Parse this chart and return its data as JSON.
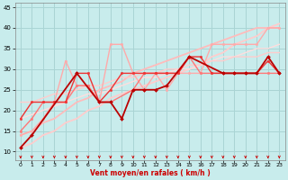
{
  "xlabel": "Vent moyen/en rafales ( km/h )",
  "xlim": [
    -0.5,
    23.5
  ],
  "ylim": [
    8,
    46
  ],
  "yticks": [
    10,
    15,
    20,
    25,
    30,
    35,
    40,
    45
  ],
  "xticks": [
    0,
    1,
    2,
    3,
    4,
    5,
    6,
    7,
    8,
    9,
    10,
    11,
    12,
    13,
    14,
    15,
    16,
    17,
    18,
    19,
    20,
    21,
    22,
    23
  ],
  "background_color": "#c8ecec",
  "grid_color": "#aad4d4",
  "arrow_color": "#cc0000",
  "series": [
    {
      "x": [
        0,
        1,
        5,
        7,
        8,
        9,
        10,
        11,
        12,
        13,
        15,
        18,
        19,
        20,
        21,
        22,
        23
      ],
      "y": [
        11,
        14,
        29,
        22,
        22,
        18,
        25,
        25,
        25,
        26,
        33,
        29,
        29,
        29,
        29,
        33,
        29
      ],
      "color": "#bb0000",
      "lw": 1.3,
      "marker": "D",
      "ms": 2.0,
      "alpha": 1.0,
      "zorder": 5
    },
    {
      "x": [
        0,
        1,
        2,
        3,
        4,
        5,
        6,
        7,
        8,
        10,
        11,
        12,
        13,
        14,
        15,
        16,
        17,
        18,
        19,
        20,
        21,
        22,
        23
      ],
      "y": [
        15,
        18,
        22,
        22,
        22,
        26,
        26,
        22,
        22,
        25,
        29,
        29,
        29,
        29,
        33,
        29,
        29,
        29,
        29,
        29,
        29,
        29,
        29
      ],
      "color": "#ff7777",
      "lw": 1.0,
      "marker": "o",
      "ms": 1.8,
      "alpha": 1.0,
      "zorder": 4
    },
    {
      "x": [
        0,
        1,
        2,
        3,
        4,
        5,
        6,
        7,
        8,
        9,
        10,
        11,
        12,
        13,
        14,
        15,
        16,
        17,
        18,
        19,
        20,
        21,
        22,
        23
      ],
      "y": [
        14,
        15,
        18,
        22,
        32,
        26,
        26,
        22,
        36,
        36,
        29,
        25,
        29,
        25,
        29,
        29,
        29,
        36,
        36,
        36,
        36,
        36,
        40,
        40
      ],
      "color": "#ffaaaa",
      "lw": 1.0,
      "marker": "o",
      "ms": 1.8,
      "alpha": 1.0,
      "zorder": 3
    },
    {
      "x": [
        0,
        1,
        2,
        3,
        4,
        5,
        6,
        7,
        8,
        9,
        10,
        11,
        12,
        13,
        14,
        15,
        16,
        17,
        18,
        19,
        20,
        21,
        22,
        23
      ],
      "y": [
        18,
        22,
        22,
        22,
        22,
        29,
        29,
        22,
        25,
        29,
        29,
        29,
        29,
        29,
        29,
        33,
        33,
        29,
        29,
        29,
        29,
        29,
        32,
        29
      ],
      "color": "#ee3333",
      "lw": 1.0,
      "marker": "o",
      "ms": 1.8,
      "alpha": 1.0,
      "zorder": 4
    },
    {
      "x": [
        0,
        1,
        2,
        3,
        4,
        5,
        6,
        7,
        8,
        9,
        10,
        11,
        12,
        13,
        14,
        15,
        16,
        17,
        18,
        19,
        20,
        21,
        22,
        23
      ],
      "y": [
        11,
        12,
        14,
        15,
        17,
        18,
        20,
        21,
        23,
        24,
        25,
        26,
        27,
        28,
        29,
        30,
        31,
        33,
        34,
        36,
        37,
        38,
        40,
        41
      ],
      "color": "#ffcccc",
      "lw": 1.3,
      "marker": null,
      "ms": 0,
      "alpha": 1.0,
      "zorder": 2
    },
    {
      "x": [
        0,
        1,
        2,
        3,
        4,
        5,
        6,
        7,
        8,
        9,
        10,
        11,
        12,
        13,
        14,
        15,
        16,
        17,
        18,
        19,
        20,
        21,
        22,
        23
      ],
      "y": [
        14,
        15,
        17,
        18,
        20,
        22,
        23,
        25,
        26,
        27,
        29,
        30,
        31,
        32,
        33,
        34,
        35,
        36,
        37,
        38,
        39,
        40,
        40,
        40
      ],
      "color": "#ffbbbb",
      "lw": 1.3,
      "marker": null,
      "ms": 0,
      "alpha": 1.0,
      "zorder": 2
    },
    {
      "x": [
        0,
        1,
        2,
        3,
        4,
        5,
        6,
        7,
        8,
        9,
        10,
        11,
        12,
        13,
        14,
        15,
        16,
        17,
        18,
        19,
        20,
        21,
        22,
        23
      ],
      "y": [
        18,
        19,
        20,
        21,
        22,
        23,
        24,
        24,
        25,
        26,
        27,
        28,
        28,
        29,
        30,
        30,
        31,
        32,
        33,
        33,
        34,
        35,
        35,
        36
      ],
      "color": "#ffdddd",
      "lw": 1.0,
      "marker": null,
      "ms": 0,
      "alpha": 1.0,
      "zorder": 2
    },
    {
      "x": [
        0,
        1,
        2,
        3,
        4,
        5,
        6,
        7,
        8,
        9,
        10,
        11,
        12,
        13,
        14,
        15,
        16,
        17,
        18,
        19,
        20,
        21,
        22,
        23
      ],
      "y": [
        22,
        22,
        23,
        24,
        24,
        25,
        26,
        26,
        27,
        28,
        28,
        29,
        29,
        30,
        30,
        31,
        31,
        32,
        32,
        33,
        33,
        33,
        34,
        34
      ],
      "color": "#ffcccc",
      "lw": 1.0,
      "marker": null,
      "ms": 0,
      "alpha": 1.0,
      "zorder": 2
    }
  ]
}
